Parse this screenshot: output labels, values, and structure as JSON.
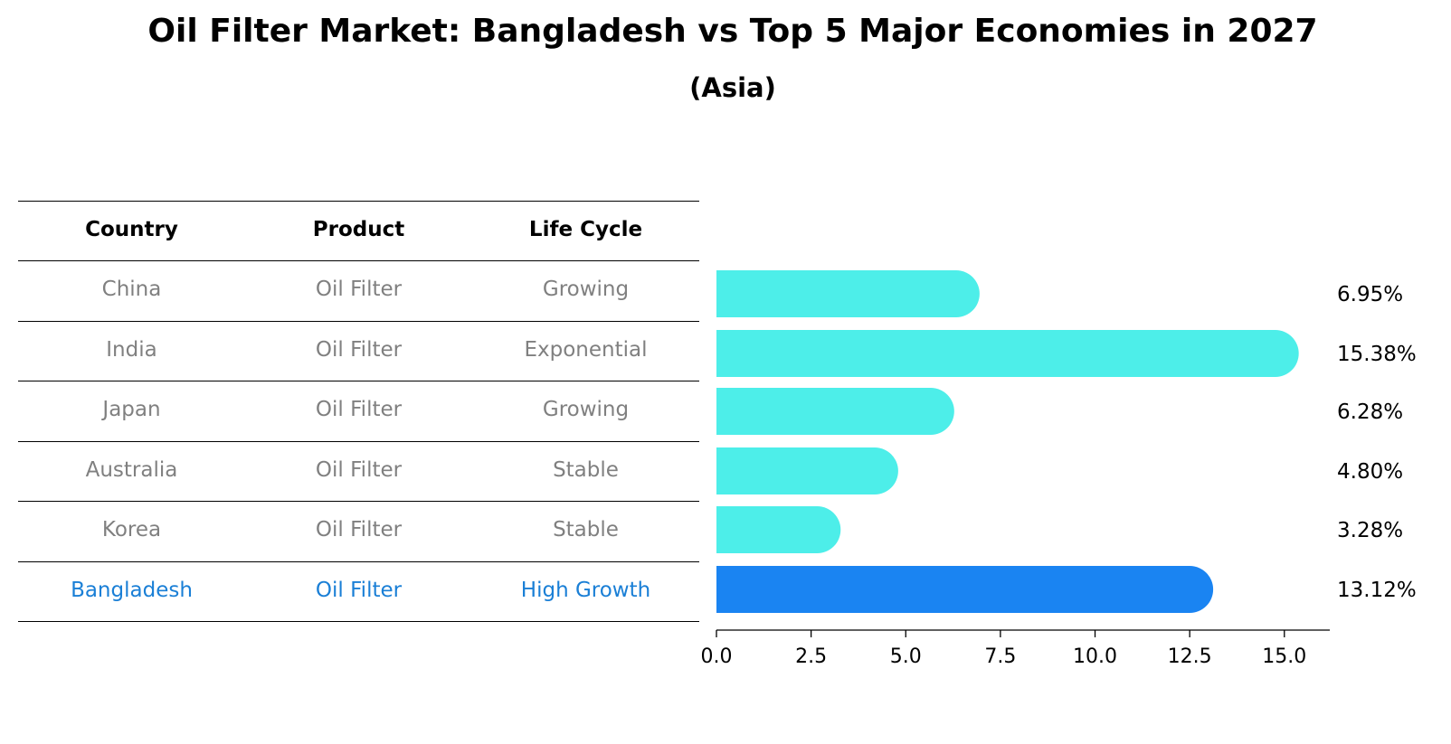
{
  "header": {
    "title": "Oil Filter Market: Bangladesh vs Top 5 Major Economies in 2027",
    "subtitle": "(Asia)"
  },
  "table": {
    "columns": [
      "Country",
      "Product",
      "Life Cycle"
    ],
    "rows": [
      [
        "China",
        "Oil Filter",
        "Growing"
      ],
      [
        "India",
        "Oil Filter",
        "Exponential"
      ],
      [
        "Japan",
        "Oil Filter",
        "Growing"
      ],
      [
        "Australia",
        "Oil Filter",
        "Stable"
      ],
      [
        "Korea",
        "Oil Filter",
        "Stable"
      ],
      [
        "Bangladesh",
        "Oil Filter",
        "High Growth"
      ]
    ],
    "highlight_row": 5
  },
  "colors": {
    "bar": "#4deee9",
    "highlight": "#1a84f2",
    "row_text": "#808080",
    "highlight_text": "#1a7fd6"
  },
  "chart_data": {
    "type": "bar",
    "orientation": "horizontal",
    "title": "Oil Filter Market: Bangladesh vs Top 5 Major Economies in 2027",
    "subtitle": "(Asia)",
    "categories": [
      "China",
      "India",
      "Japan",
      "Australia",
      "Korea",
      "Bangladesh"
    ],
    "values": [
      6.95,
      15.38,
      6.28,
      4.8,
      3.28,
      13.12
    ],
    "value_labels": [
      "6.95%",
      "15.38%",
      "6.28%",
      "4.80%",
      "3.28%",
      "13.12%"
    ],
    "xlim": [
      0,
      16.2
    ],
    "xticks": [
      0.0,
      2.5,
      5.0,
      7.5,
      10.0,
      12.5,
      15.0
    ],
    "xtick_labels": [
      "0.0",
      "2.5",
      "5.0",
      "7.5",
      "10.0",
      "12.5",
      "15.0"
    ],
    "xlabel": "",
    "ylabel": "",
    "grid": false,
    "legend": "none"
  }
}
